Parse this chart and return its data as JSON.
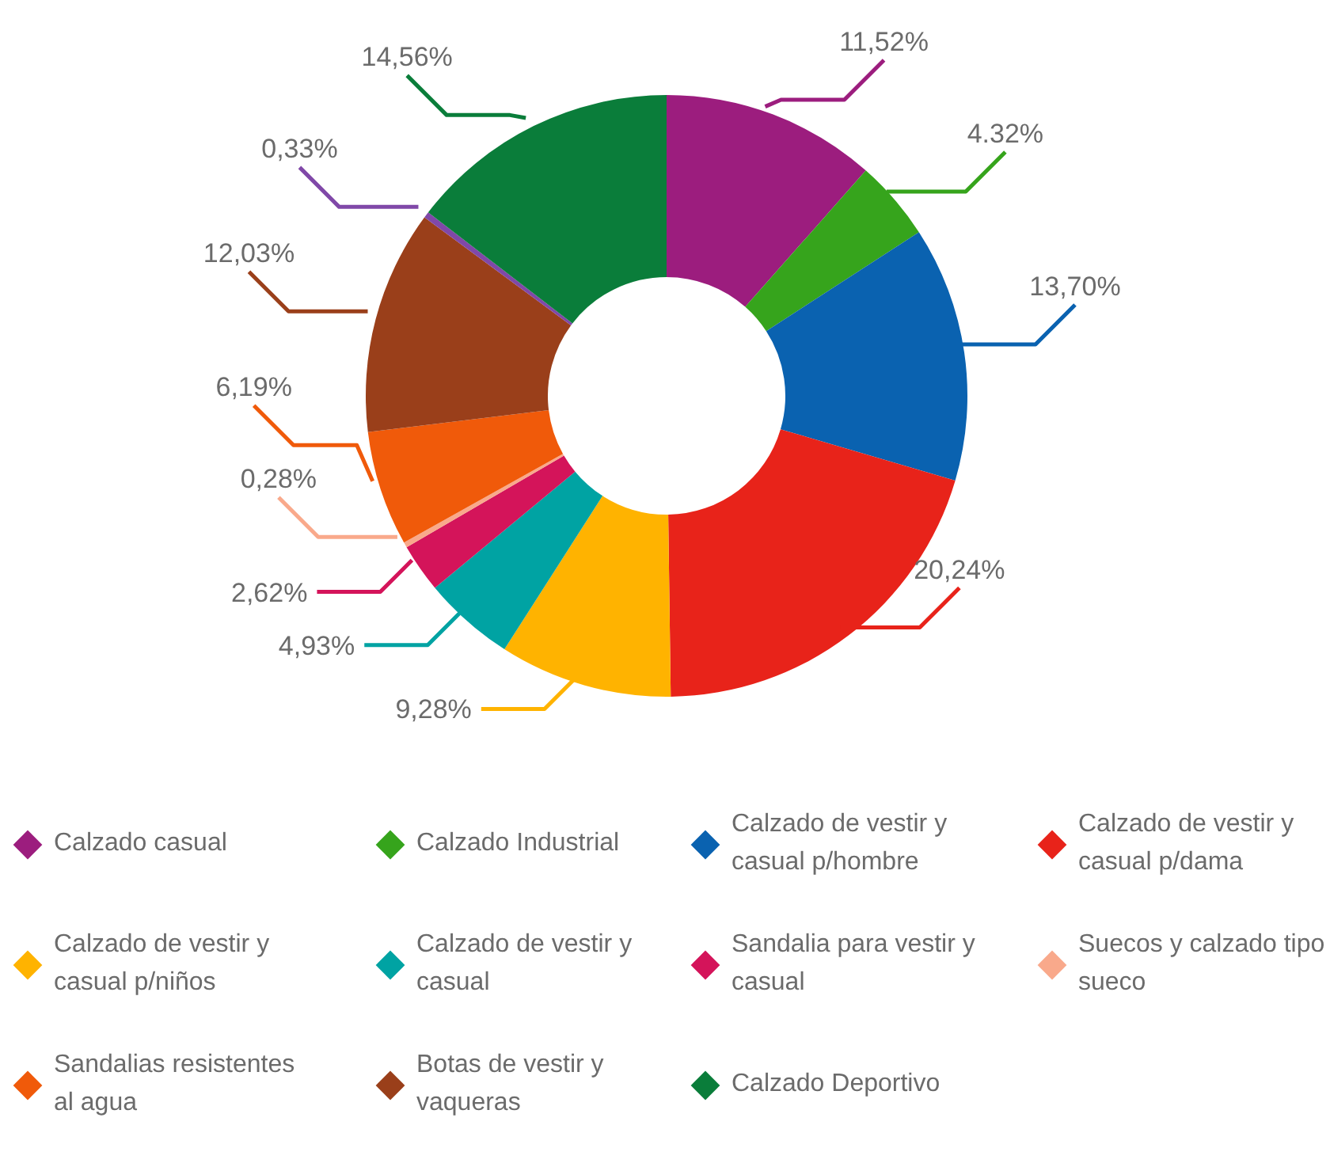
{
  "chart_data": {
    "type": "donut",
    "categories": [
      "Calzado casual",
      "Calzado Industrial",
      "Calzado de vestir y casual p/hombre",
      "Calzado de vestir y casual p/dama",
      "Calzado de vestir y casual p/niños",
      "Calzado de vestir y casual",
      "Sandalia para vestir y casual",
      "Suecos y calzado tipo sueco",
      "Sandalias resistentes al agua",
      "Botas de vestir y vaqueras",
      null,
      "Calzado Deportivo"
    ],
    "values": [
      11.52,
      4.32,
      13.7,
      20.24,
      9.28,
      4.93,
      2.62,
      0.28,
      6.19,
      12.03,
      0.33,
      14.56
    ],
    "colors": [
      "#9c1d7e",
      "#36a41c",
      "#0a62b0",
      "#e8231a",
      "#ffb300",
      "#00a3a3",
      "#d4145a",
      "#f9a98b",
      "#f05a0a",
      "#9a3f1a",
      "#8048a8",
      "#0a7d3a"
    ],
    "value_labels": [
      "11,52%",
      "4.32%",
      "13,70%",
      "20,24%",
      "9,28%",
      "4,93%",
      "2,62%",
      "0,28%",
      "6,19%",
      "12,03%",
      "0,33%",
      "14,56%"
    ],
    "legend": "bottom"
  }
}
